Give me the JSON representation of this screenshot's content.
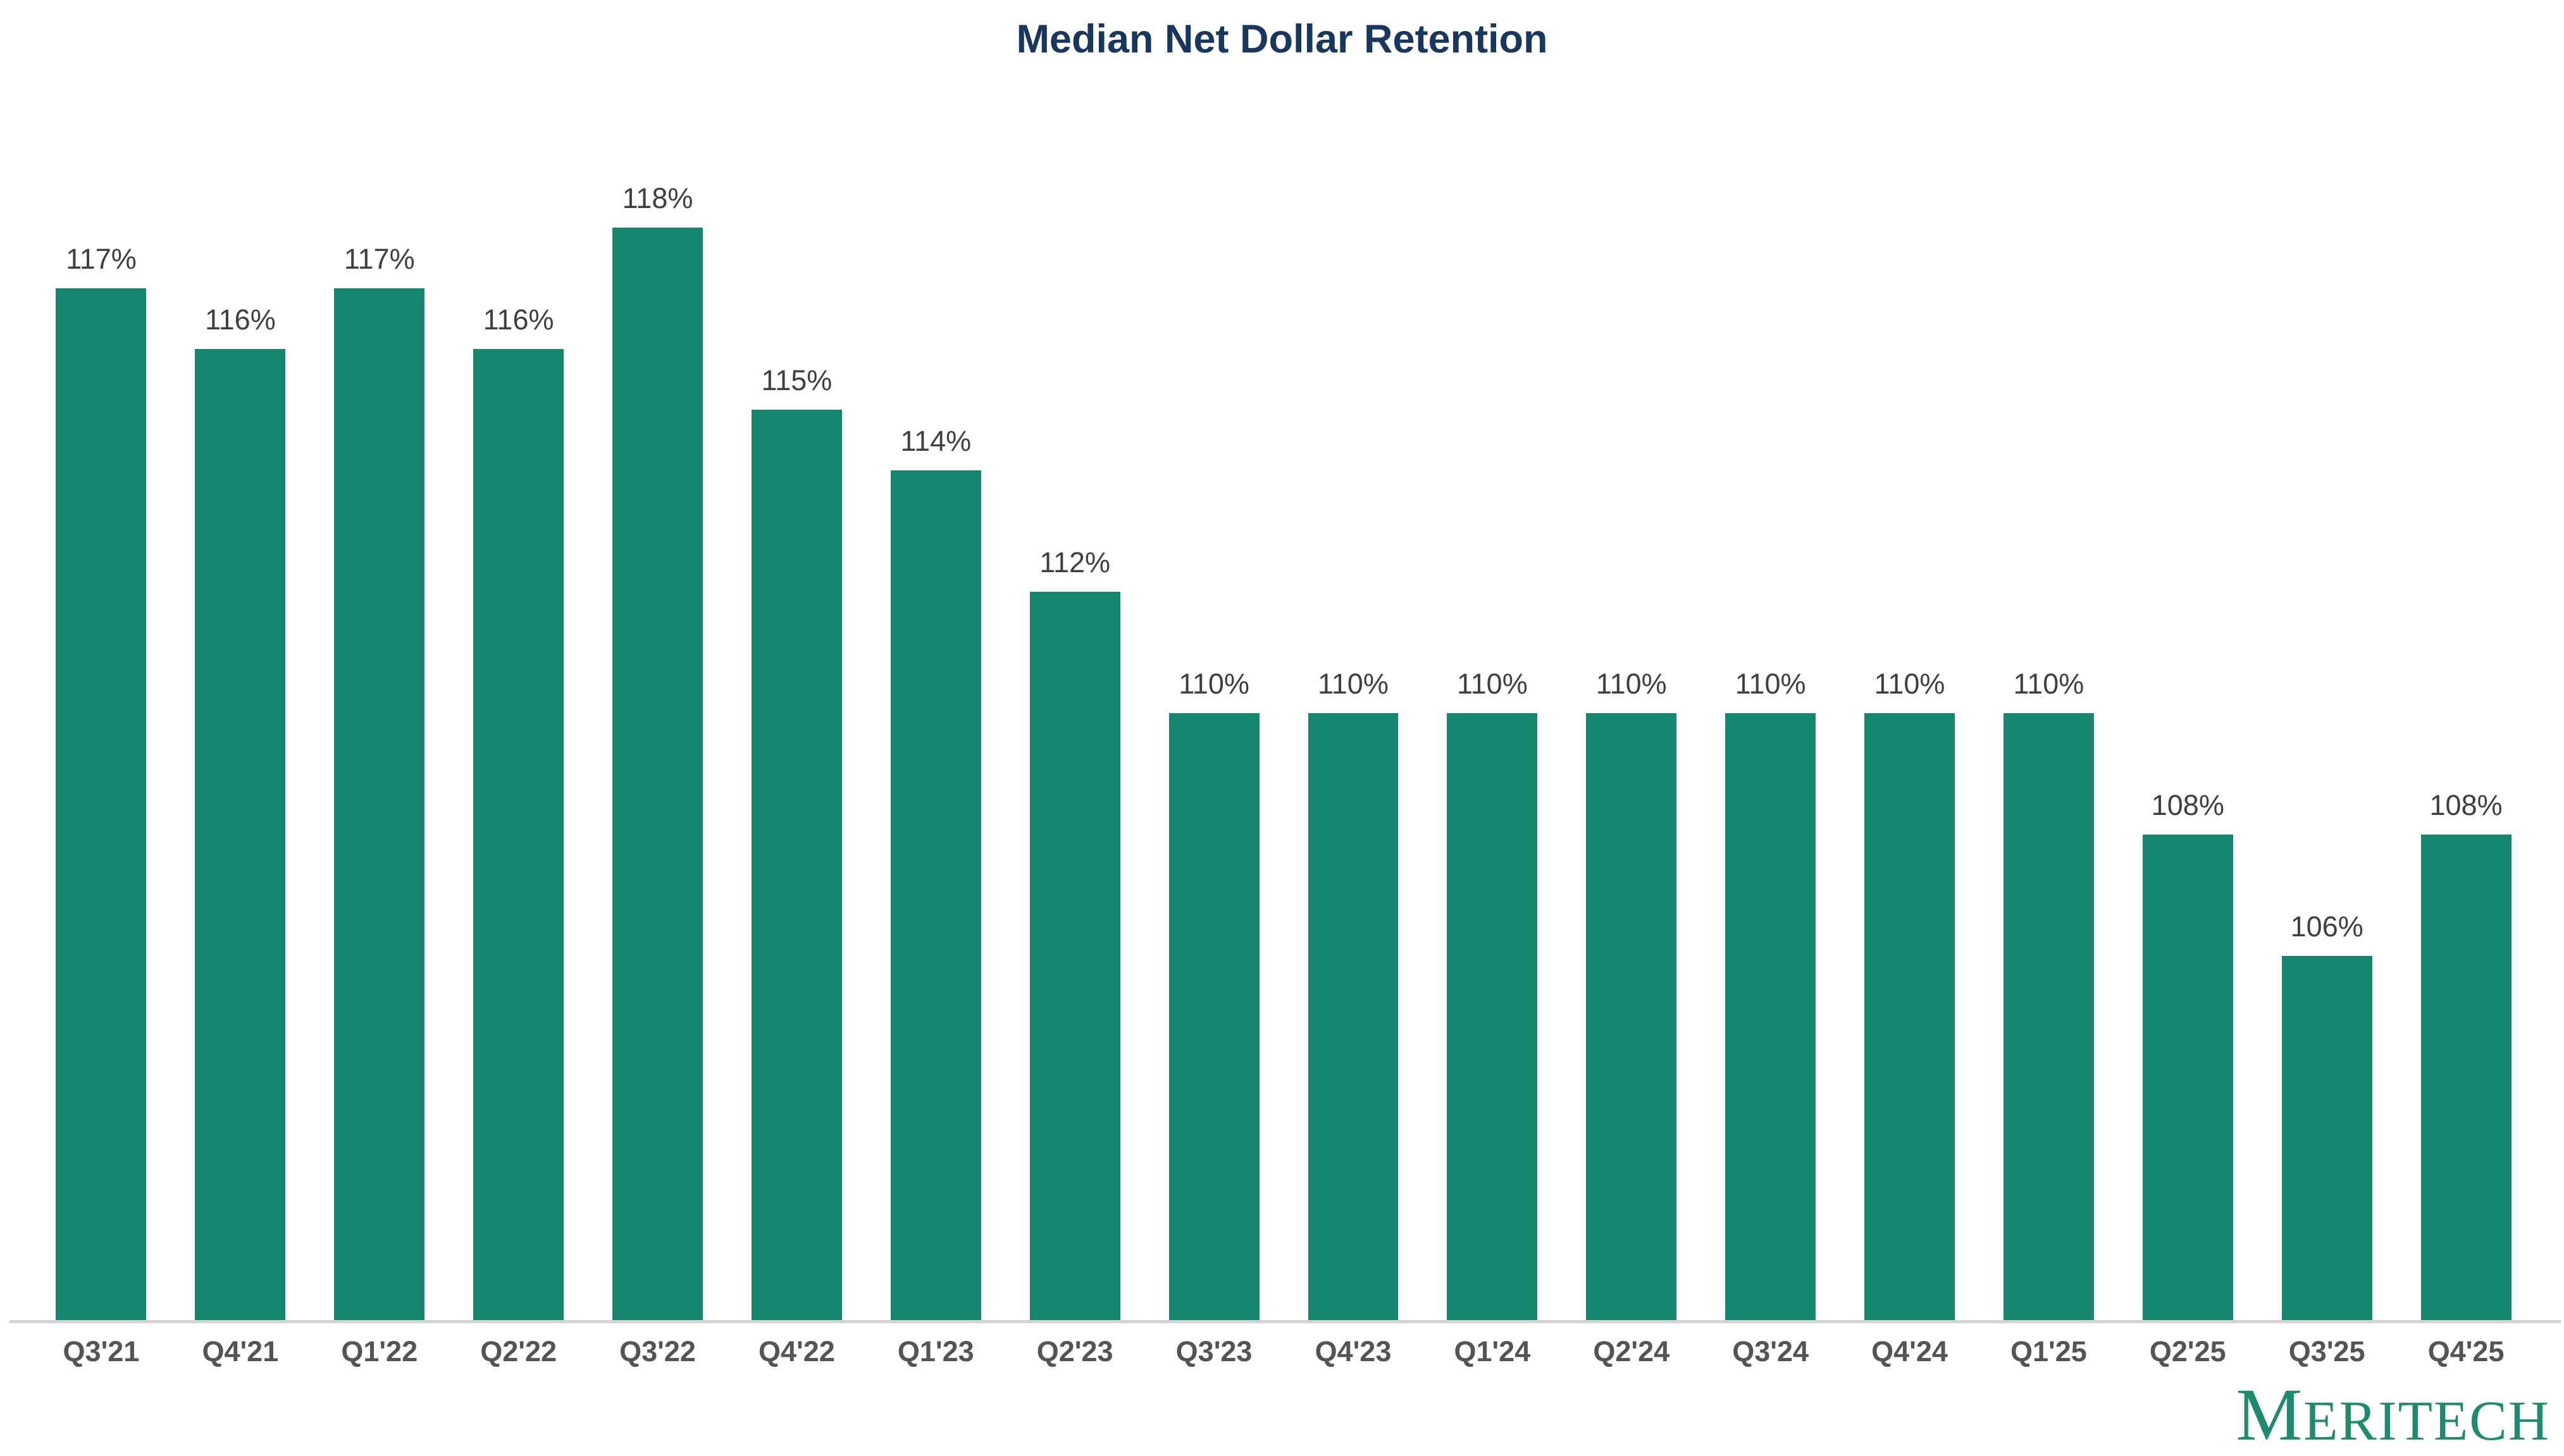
{
  "chart_data": {
    "type": "bar",
    "title": "Median Net Dollar Retention",
    "categories": [
      "Q3'21",
      "Q4'21",
      "Q1'22",
      "Q2'22",
      "Q3'22",
      "Q4'22",
      "Q1'23",
      "Q2'23",
      "Q3'23",
      "Q4'23",
      "Q1'24",
      "Q2'24",
      "Q3'24",
      "Q4'24",
      "Q1'25",
      "Q2'25",
      "Q3'25",
      "Q4'25"
    ],
    "values": [
      117,
      116,
      117,
      116,
      118,
      115,
      114,
      112,
      110,
      110,
      110,
      110,
      110,
      110,
      110,
      108,
      106,
      108
    ],
    "data_labels": [
      "117%",
      "116%",
      "117%",
      "116%",
      "118%",
      "115%",
      "114%",
      "112%",
      "110%",
      "110%",
      "110%",
      "110%",
      "110%",
      "110%",
      "110%",
      "108%",
      "106%",
      "108%"
    ],
    "baseline_value": 100,
    "ylim": [
      100,
      120
    ],
    "xlabel": "",
    "ylabel": "",
    "grid": false,
    "legend": "none",
    "bar_color": "#17866E",
    "title_color": "#17375E",
    "value_label_color": "#3F3F3F",
    "category_label_color": "#545454",
    "axis_line_color": "#D2D2D2"
  },
  "logo": {
    "first_letter": "M",
    "rest": "ERITECH",
    "color": "#1E8A6E"
  }
}
